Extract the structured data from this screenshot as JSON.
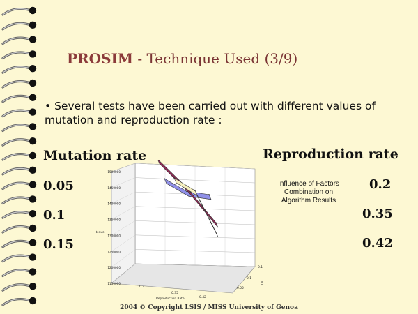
{
  "slide": {
    "title_brand": "PROSIM",
    "title_rest": " - Technique Used (3/9)",
    "bullet": "• Several tests have been carried out with different values of mutation and reproduction rate :",
    "mutation_label": "Mutation rate",
    "reproduction_label": "Reproduction rate",
    "mutation_values": [
      "0.05",
      "0.1",
      "0.15"
    ],
    "reproduction_values": [
      "0.2",
      "0.35",
      "0.42"
    ],
    "chart_caption": "Influence of Factors Combination on Algorithm Results",
    "footer": "2004 © Copyright LSIS / MISS University of Genoa"
  },
  "chart_data": {
    "type": "line",
    "title": "",
    "ylabel": "Valeur optimale obtenue",
    "xlabel": "Reproduction Rate",
    "zlabel": "Mutation Rate",
    "y_ticks": [
      "1500000",
      "1450000",
      "1400000",
      "1350000",
      "1300000",
      "1250000",
      "1200000",
      "1150000"
    ],
    "x_ticks": [
      "0.2",
      "0.35",
      "0.42"
    ],
    "z_ticks": [
      "0.05",
      "0.1",
      "0.15"
    ],
    "series": [
      {
        "name": "0.05",
        "color": "#f7f1bf",
        "values": [
          1440000,
          1400000,
          1270000
        ]
      },
      {
        "name": "0.1",
        "color": "#9090e8",
        "values": [
          1430000,
          1390000,
          1380000
        ]
      },
      {
        "name": "0.15",
        "color": "#8e2b55",
        "values": [
          1480000,
          1390000,
          1280000
        ]
      }
    ]
  }
}
